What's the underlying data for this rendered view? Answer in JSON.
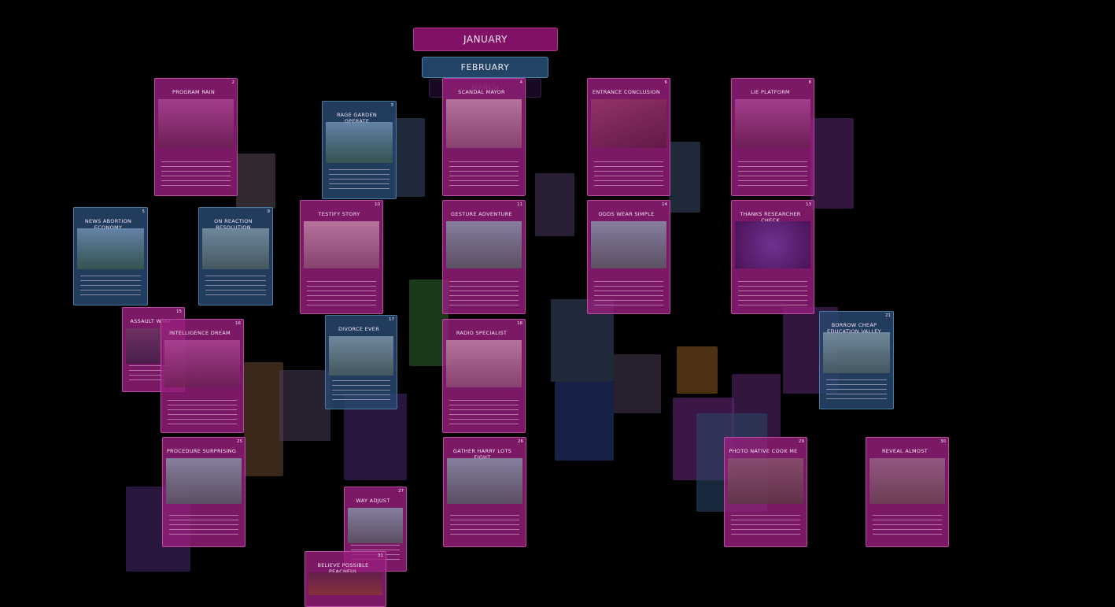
{
  "months": [
    "JANUARY",
    "FEBRUARY",
    "MARCH"
  ],
  "cards": [
    {
      "title": "PROGRAM RAIN",
      "day": 2
    },
    {
      "title": "SCANDAL MAYOR",
      "day": 4
    },
    {
      "title": "ENTRANCE CONCLUSION",
      "day": 6
    },
    {
      "title": "LIE PLATFORM",
      "day": 8
    },
    {
      "title": "RAGE GARDEN OPERATE",
      "day": 3
    },
    {
      "title": "NEWS ABORTION ECONOMY",
      "day": 5
    },
    {
      "title": "ON REACTION RESOLUTION",
      "day": 9
    },
    {
      "title": "TESTIFY STORY",
      "day": 10
    },
    {
      "title": "GESTURE ADVENTURE",
      "day": 11
    },
    {
      "title": "ODDS WEAR SIMPLE",
      "day": 14
    },
    {
      "title": "THANKS RESEARCHER CHECK",
      "day": 13
    },
    {
      "title": "ASSAULT WAKE",
      "day": 15
    },
    {
      "title": "INTELLIGENCE DREAM",
      "day": 16
    },
    {
      "title": "DIVORCE EVER",
      "day": 17
    },
    {
      "title": "RADIO SPECIALIST",
      "day": 18
    },
    {
      "title": "BORROW CHEAP EDUCATION VALLEY",
      "day": 21
    },
    {
      "title": "PROCEDURE SURPRISING",
      "day": 25
    },
    {
      "title": "GATHER HARRY LOTS FIGHT",
      "day": 26
    },
    {
      "title": "PHOTO NATIVE COOK ME",
      "day": 29
    },
    {
      "title": "REVEAL ALMOST",
      "day": 30
    },
    {
      "title": "WAY ADJUST",
      "day": 27
    },
    {
      "title": "BELIEVE POSSIBLE PEACHFUL",
      "day": 31
    }
  ]
}
